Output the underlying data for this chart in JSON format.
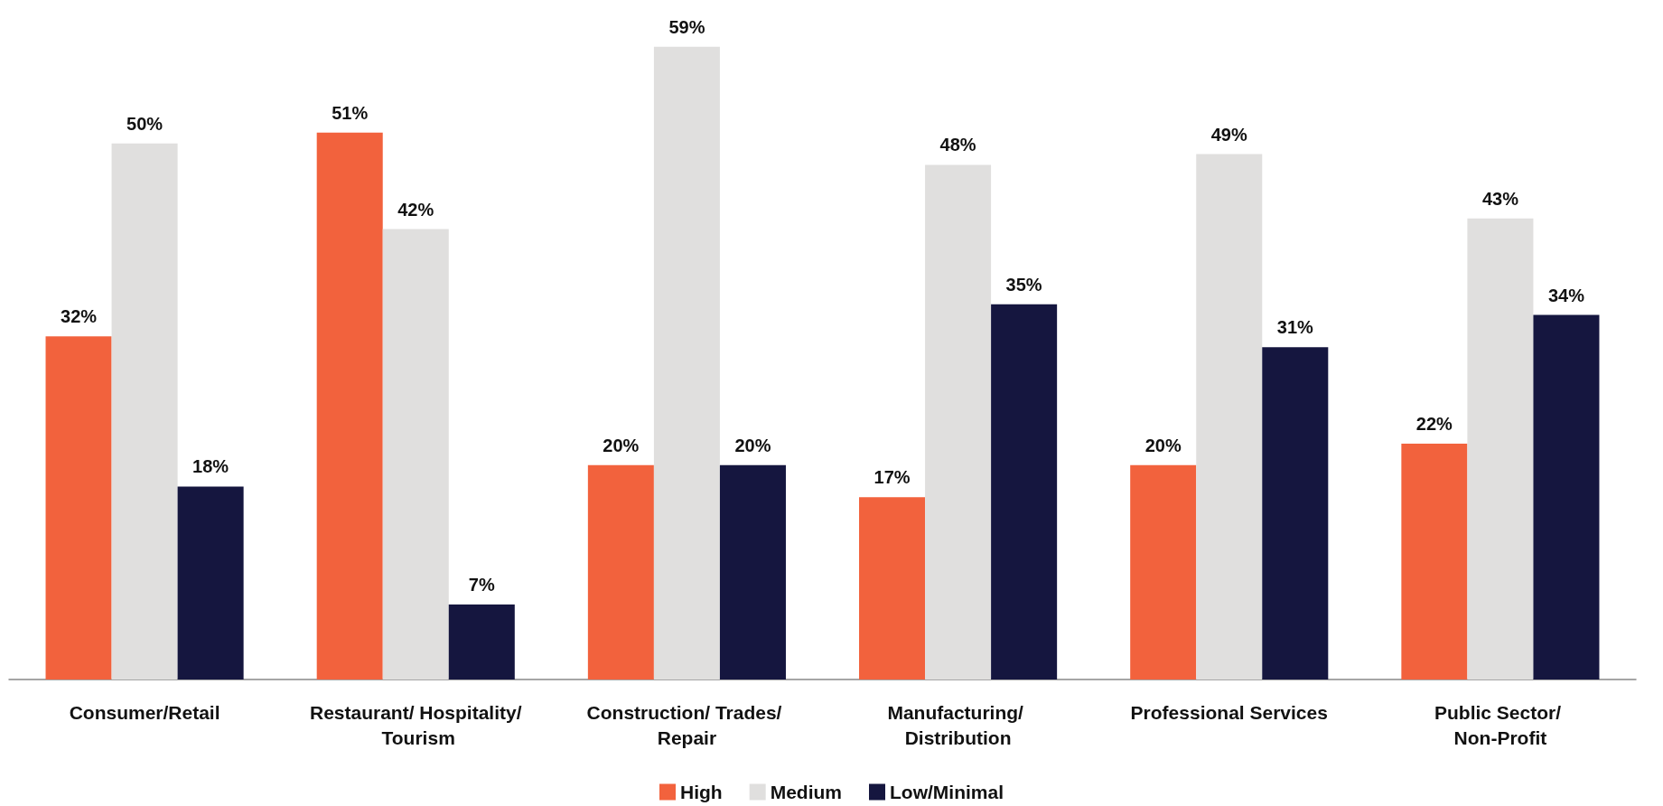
{
  "chart_data": {
    "type": "bar",
    "categories": [
      "Consumer/Retail",
      "Restaurant/ Hospitality/ Tourism",
      "Construction/ Trades/ Repair",
      "Manufacturing/ Distribution",
      "Professional Services",
      "Public Sector/ Non-Profit"
    ],
    "series": [
      {
        "name": "High",
        "color": "#f2623d",
        "values": [
          32,
          51,
          20,
          17,
          20,
          22
        ],
        "value_labels": [
          "32%",
          "51%",
          "20%",
          "17%",
          "20%",
          "22%"
        ]
      },
      {
        "name": "Medium",
        "color": "#e0dfde",
        "values": [
          50,
          42,
          59,
          48,
          49,
          43
        ],
        "value_labels": [
          "50%",
          "42%",
          "59%",
          "48%",
          "49%",
          "43%"
        ]
      },
      {
        "name": "Low/Minimal",
        "color": "#15163f",
        "values": [
          18,
          7,
          20,
          35,
          31,
          34
        ],
        "value_labels": [
          "18%",
          "7%",
          "20%",
          "35%",
          "31%",
          "34%"
        ]
      }
    ],
    "legend": "bottom"
  }
}
